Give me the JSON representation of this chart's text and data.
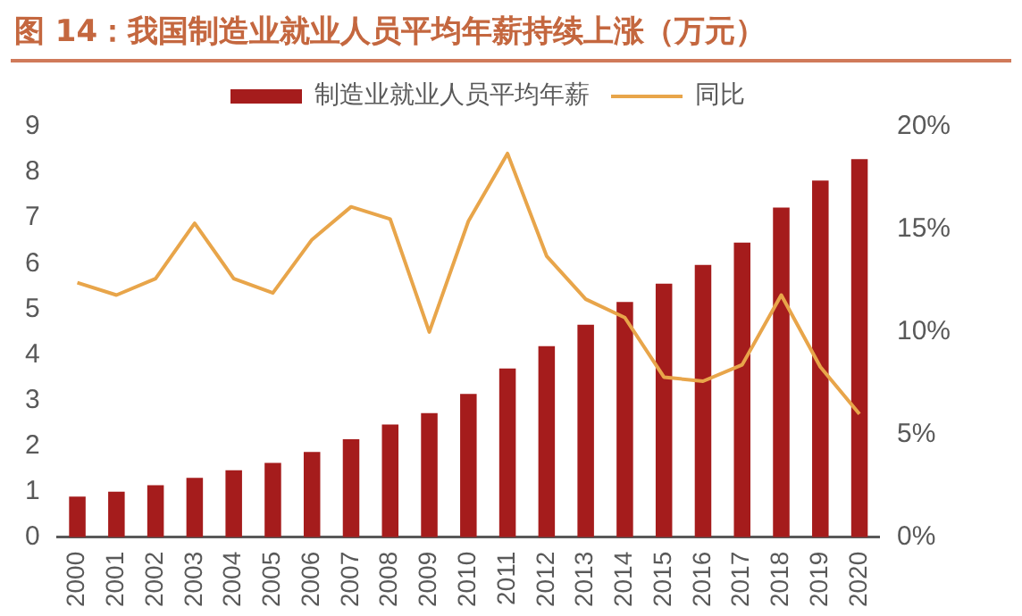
{
  "chart_data": {
    "type": "bar",
    "title": "图 14：我国制造业就业人员平均年薪持续上涨（万元）",
    "categories": [
      "2000",
      "2001",
      "2002",
      "2003",
      "2004",
      "2005",
      "2006",
      "2007",
      "2008",
      "2009",
      "2010",
      "2011",
      "2012",
      "2013",
      "2014",
      "2015",
      "2016",
      "2017",
      "2018",
      "2019",
      "2020"
    ],
    "series": [
      {
        "name": "制造业就业人员平均年薪",
        "color": "#a51c1c",
        "values": [
          0.89,
          1.0,
          1.14,
          1.3,
          1.47,
          1.63,
          1.87,
          2.15,
          2.47,
          2.72,
          3.14,
          3.7,
          4.19,
          4.66,
          5.16,
          5.56,
          5.97,
          6.46,
          7.23,
          7.82,
          8.29
        ]
      },
      {
        "name": "同比",
        "type": "line",
        "axis": "y2",
        "color": "#e8a54a",
        "values": [
          12.4,
          11.8,
          12.6,
          15.3,
          12.6,
          11.9,
          14.5,
          16.1,
          15.5,
          10.0,
          15.4,
          18.7,
          13.7,
          11.6,
          10.7,
          7.8,
          7.6,
          8.4,
          11.8,
          8.3,
          6.0
        ]
      }
    ],
    "ylim": [
      0,
      9
    ],
    "yticks": [
      0,
      1,
      2,
      3,
      4,
      5,
      6,
      7,
      8,
      9
    ],
    "y2lim": [
      0,
      20
    ],
    "y2ticks": [
      {
        "value": 0,
        "label": "0%"
      },
      {
        "value": 5,
        "label": "5%"
      },
      {
        "value": 10,
        "label": "10%"
      },
      {
        "value": 15,
        "label": "15%"
      },
      {
        "value": 20,
        "label": "20%"
      }
    ],
    "legend": "top",
    "grid": false,
    "marker": "none",
    "line_style": "solid"
  }
}
